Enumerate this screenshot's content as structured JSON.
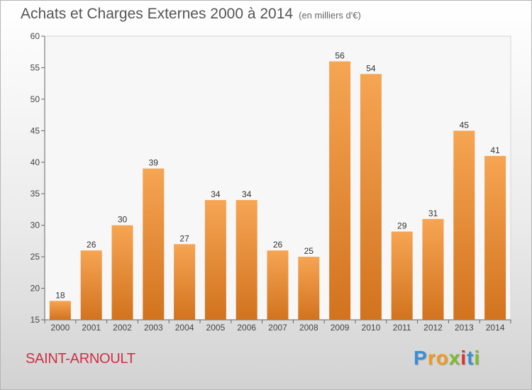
{
  "title": "Achats et Charges Externes 2000 à 2014",
  "unit": "(en milliers d'€)",
  "commune": "SAINT-ARNOULT",
  "logo": [
    "P",
    "r",
    "o",
    "x",
    "i",
    "t",
    "i"
  ],
  "colors": {
    "bar_top": "#f6a553",
    "bar_bottom": "#d2731e",
    "title": "#555555",
    "commune": "#cf2f45",
    "logo": [
      "#3a8fd8",
      "#f29a1e",
      "#f29a1e",
      "#7cbc2c",
      "#e3312f",
      "#3a8fd8",
      "#7cbc2c"
    ]
  },
  "chart_data": {
    "type": "bar",
    "title": "Achats et Charges Externes 2000 à 2014",
    "categories": [
      "2000",
      "2001",
      "2002",
      "2003",
      "2004",
      "2005",
      "2006",
      "2007",
      "2008",
      "2009",
      "2010",
      "2011",
      "2012",
      "2013",
      "2014"
    ],
    "values": [
      18,
      26,
      30,
      39,
      27,
      34,
      34,
      26,
      25,
      56,
      54,
      29,
      31,
      45,
      41
    ],
    "ylim": [
      15,
      60
    ],
    "yticks": [
      15,
      20,
      25,
      30,
      35,
      40,
      45,
      50,
      55,
      60
    ],
    "grid": false,
    "data_labels": true
  }
}
